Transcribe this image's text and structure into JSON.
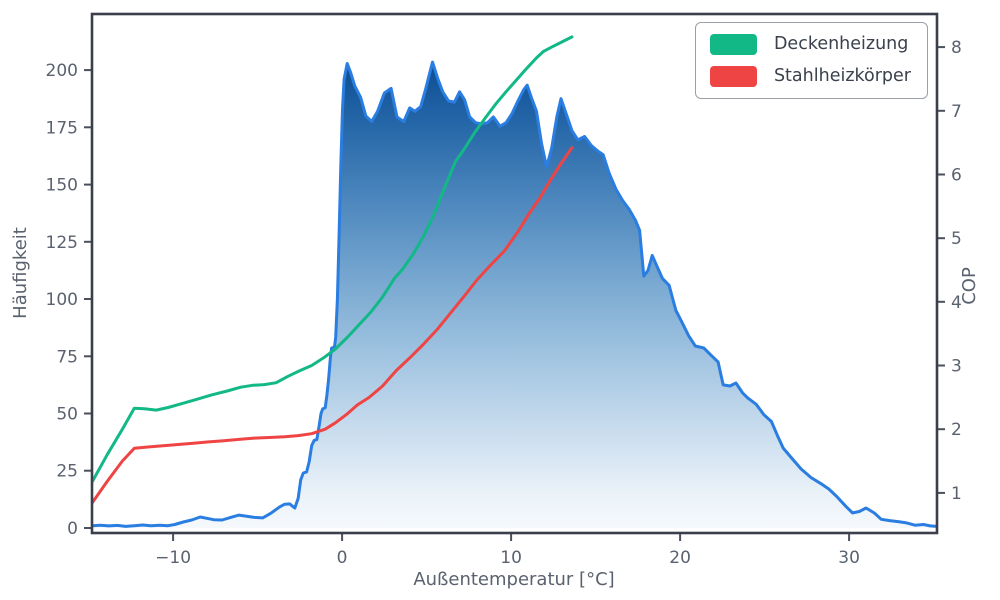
{
  "figure": {
    "background": "#ffffff"
  },
  "colors": {
    "spine": "#3a3f4b",
    "tick_mark": "#4a505c",
    "tick_label": "#5b626f",
    "axis_label": "#5b626f",
    "legend_border": "#9aa0a6",
    "legend_text": "#3b414c",
    "histogram_line": "#2a7de1",
    "area_gradient_stops": [
      [
        0.0,
        "#094489"
      ],
      [
        0.1,
        "#0e4f94"
      ],
      [
        0.2,
        "#2264a6"
      ],
      [
        0.35,
        "#4a85bc"
      ],
      [
        0.5,
        "#74a5cf"
      ],
      [
        0.65,
        "#9ec2e0"
      ],
      [
        0.8,
        "#c8dcee"
      ],
      [
        0.92,
        "#e9f1f8"
      ],
      [
        1.0,
        "#f7fafd"
      ]
    ],
    "deckenheizung": "#12b886",
    "stahlheizkoerper": "#ef4444"
  },
  "legend": {
    "position": "upper right",
    "items": [
      {
        "label": "Deckenheizung",
        "color": "#12b886"
      },
      {
        "label": "Stahlheizkörper",
        "color": "#ef4444"
      }
    ]
  },
  "chart_data": {
    "type": "area",
    "title": "",
    "xlabel": "Außentemperatur [°C]",
    "ylabel_left": "Häufigkeit",
    "ylabel_right": "COP",
    "xlim": [
      -14.8,
      35.2
    ],
    "ylim_left": [
      -2.2,
      224.5
    ],
    "ylim_right": [
      0.37,
      8.52
    ],
    "xticks": [
      -10,
      0,
      10,
      20,
      30
    ],
    "yticks_left": [
      0,
      25,
      50,
      75,
      100,
      125,
      150,
      175,
      200
    ],
    "yticks_right": [
      1,
      2,
      3,
      4,
      5,
      6,
      7,
      8
    ],
    "grid": false,
    "series": [
      {
        "name": "haeufigkeit-histogram",
        "type": "area",
        "axis": "left",
        "line_color": "#2a7de1",
        "fill": "vertical-gradient",
        "points": [
          [
            -14.8,
            1.0
          ],
          [
            -14.3,
            1.2
          ],
          [
            -13.8,
            0.9
          ],
          [
            -13.3,
            1.1
          ],
          [
            -12.8,
            0.7
          ],
          [
            -12.3,
            1.0
          ],
          [
            -11.8,
            1.3
          ],
          [
            -11.3,
            1.0
          ],
          [
            -10.8,
            1.2
          ],
          [
            -10.3,
            1.0
          ],
          [
            -9.9,
            1.5
          ],
          [
            -9.4,
            2.6
          ],
          [
            -8.9,
            3.5
          ],
          [
            -8.4,
            4.8
          ],
          [
            -8.0,
            4.2
          ],
          [
            -7.6,
            3.6
          ],
          [
            -7.1,
            3.5
          ],
          [
            -6.6,
            4.6
          ],
          [
            -6.1,
            5.6
          ],
          [
            -5.7,
            5.2
          ],
          [
            -5.2,
            4.6
          ],
          [
            -4.7,
            4.4
          ],
          [
            -4.2,
            6.5
          ],
          [
            -3.7,
            9.2
          ],
          [
            -3.4,
            10.4
          ],
          [
            -3.1,
            10.5
          ],
          [
            -2.8,
            8.7
          ],
          [
            -2.6,
            13
          ],
          [
            -2.45,
            21
          ],
          [
            -2.3,
            24
          ],
          [
            -2.1,
            24.5
          ],
          [
            -1.95,
            29
          ],
          [
            -1.8,
            36
          ],
          [
            -1.65,
            38.3
          ],
          [
            -1.5,
            38.6
          ],
          [
            -1.35,
            45
          ],
          [
            -1.25,
            50
          ],
          [
            -1.15,
            52
          ],
          [
            -1.0,
            52.5
          ],
          [
            -0.9,
            58
          ],
          [
            -0.8,
            65
          ],
          [
            -0.7,
            74
          ],
          [
            -0.62,
            78.6
          ],
          [
            -0.45,
            79
          ],
          [
            -0.38,
            83.4
          ],
          [
            -0.28,
            100
          ],
          [
            -0.18,
            128
          ],
          [
            -0.08,
            158
          ],
          [
            0.02,
            183
          ],
          [
            0.12,
            196
          ],
          [
            0.3,
            202.9
          ],
          [
            0.5,
            199
          ],
          [
            0.75,
            193
          ],
          [
            1.1,
            188
          ],
          [
            1.4,
            180
          ],
          [
            1.75,
            177.5
          ],
          [
            2.1,
            182
          ],
          [
            2.5,
            190
          ],
          [
            2.9,
            192
          ],
          [
            3.25,
            179.5
          ],
          [
            3.65,
            177.5
          ],
          [
            4.0,
            183.5
          ],
          [
            4.3,
            182
          ],
          [
            4.65,
            184
          ],
          [
            4.95,
            192
          ],
          [
            5.35,
            203.5
          ],
          [
            5.65,
            196.5
          ],
          [
            5.95,
            190.5
          ],
          [
            6.3,
            186.5
          ],
          [
            6.65,
            186
          ],
          [
            6.95,
            190.5
          ],
          [
            7.25,
            187
          ],
          [
            7.55,
            179.5
          ],
          [
            7.9,
            177
          ],
          [
            8.25,
            176.5
          ],
          [
            8.6,
            177
          ],
          [
            8.95,
            179.5
          ],
          [
            9.35,
            175.5
          ],
          [
            9.7,
            177
          ],
          [
            10.05,
            181
          ],
          [
            10.4,
            186.5
          ],
          [
            10.75,
            191.5
          ],
          [
            10.95,
            193.4
          ],
          [
            11.2,
            188
          ],
          [
            11.5,
            182
          ],
          [
            11.8,
            168
          ],
          [
            12.1,
            157.6
          ],
          [
            12.4,
            166
          ],
          [
            12.7,
            179.5
          ],
          [
            12.95,
            187.5
          ],
          [
            13.3,
            180
          ],
          [
            13.6,
            173.5
          ],
          [
            13.95,
            169.5
          ],
          [
            14.35,
            171
          ],
          [
            14.75,
            167
          ],
          [
            15.15,
            164.5
          ],
          [
            15.45,
            163
          ],
          [
            15.8,
            155
          ],
          [
            16.2,
            148
          ],
          [
            16.6,
            143
          ],
          [
            17.0,
            139
          ],
          [
            17.35,
            134.5
          ],
          [
            17.6,
            130
          ],
          [
            17.85,
            110
          ],
          [
            18.1,
            112.5
          ],
          [
            18.35,
            119
          ],
          [
            18.65,
            114
          ],
          [
            18.95,
            109
          ],
          [
            19.35,
            106
          ],
          [
            19.75,
            95
          ],
          [
            20.1,
            90
          ],
          [
            20.5,
            84
          ],
          [
            20.9,
            79.5
          ],
          [
            21.4,
            78.6
          ],
          [
            21.9,
            75
          ],
          [
            22.25,
            72.5
          ],
          [
            22.55,
            62.5
          ],
          [
            22.95,
            62
          ],
          [
            23.3,
            63.3
          ],
          [
            23.7,
            59
          ],
          [
            24.0,
            56.8
          ],
          [
            24.5,
            54
          ],
          [
            24.95,
            49.5
          ],
          [
            25.4,
            46.5
          ],
          [
            25.75,
            40.5
          ],
          [
            26.1,
            34.9
          ],
          [
            26.6,
            30.5
          ],
          [
            27.15,
            25.8
          ],
          [
            27.75,
            22
          ],
          [
            28.3,
            19.5
          ],
          [
            28.8,
            17
          ],
          [
            29.3,
            13.5
          ],
          [
            29.8,
            9.5
          ],
          [
            30.2,
            6.6
          ],
          [
            30.6,
            7.2
          ],
          [
            31.0,
            8.7
          ],
          [
            31.5,
            6.5
          ],
          [
            31.9,
            3.8
          ],
          [
            32.4,
            3.2
          ],
          [
            32.9,
            2.8
          ],
          [
            33.4,
            2.2
          ],
          [
            33.9,
            1.2
          ],
          [
            34.4,
            1.5
          ],
          [
            34.8,
            0.9
          ],
          [
            35.2,
            0.7
          ]
        ]
      },
      {
        "name": "Deckenheizung",
        "type": "line",
        "axis": "right",
        "color": "#12b886",
        "points": [
          [
            -14.8,
            1.17
          ],
          [
            -13.9,
            1.6
          ],
          [
            -13.0,
            2.0
          ],
          [
            -12.3,
            2.33
          ],
          [
            -11.7,
            2.32
          ],
          [
            -11.0,
            2.3
          ],
          [
            -10.3,
            2.34
          ],
          [
            -9.5,
            2.4
          ],
          [
            -8.6,
            2.47
          ],
          [
            -7.7,
            2.54
          ],
          [
            -6.8,
            2.6
          ],
          [
            -6.0,
            2.66
          ],
          [
            -5.3,
            2.69
          ],
          [
            -4.6,
            2.7
          ],
          [
            -3.9,
            2.73
          ],
          [
            -3.2,
            2.83
          ],
          [
            -2.5,
            2.92
          ],
          [
            -1.8,
            3.0
          ],
          [
            -1.1,
            3.12
          ],
          [
            -0.4,
            3.26
          ],
          [
            0.3,
            3.44
          ],
          [
            1.0,
            3.64
          ],
          [
            1.7,
            3.84
          ],
          [
            2.4,
            4.08
          ],
          [
            3.1,
            4.37
          ],
          [
            3.6,
            4.52
          ],
          [
            4.2,
            4.75
          ],
          [
            4.8,
            5.02
          ],
          [
            5.4,
            5.35
          ],
          [
            6.0,
            5.75
          ],
          [
            6.7,
            6.2
          ],
          [
            7.3,
            6.43
          ],
          [
            7.9,
            6.68
          ],
          [
            8.5,
            6.9
          ],
          [
            9.1,
            7.11
          ],
          [
            9.7,
            7.3
          ],
          [
            10.3,
            7.48
          ],
          [
            10.9,
            7.66
          ],
          [
            11.5,
            7.83
          ],
          [
            11.9,
            7.93
          ],
          [
            12.4,
            8.0
          ],
          [
            13.0,
            8.08
          ],
          [
            13.6,
            8.16
          ]
        ]
      },
      {
        "name": "Stahlheizkörper",
        "type": "line",
        "axis": "right",
        "color": "#ef4444",
        "points": [
          [
            -14.8,
            0.84
          ],
          [
            -13.9,
            1.18
          ],
          [
            -13.0,
            1.5
          ],
          [
            -12.3,
            1.7
          ],
          [
            -11.5,
            1.72
          ],
          [
            -10.6,
            1.74
          ],
          [
            -9.7,
            1.76
          ],
          [
            -8.8,
            1.78
          ],
          [
            -7.9,
            1.8
          ],
          [
            -7.0,
            1.82
          ],
          [
            -6.1,
            1.84
          ],
          [
            -5.2,
            1.86
          ],
          [
            -4.3,
            1.87
          ],
          [
            -3.4,
            1.88
          ],
          [
            -2.6,
            1.9
          ],
          [
            -1.8,
            1.93
          ],
          [
            -1.0,
            2.0
          ],
          [
            -0.4,
            2.1
          ],
          [
            0.3,
            2.24
          ],
          [
            0.9,
            2.38
          ],
          [
            1.6,
            2.5
          ],
          [
            2.4,
            2.68
          ],
          [
            3.2,
            2.92
          ],
          [
            4.0,
            3.12
          ],
          [
            4.8,
            3.33
          ],
          [
            5.6,
            3.56
          ],
          [
            6.4,
            3.82
          ],
          [
            7.2,
            4.08
          ],
          [
            8.0,
            4.35
          ],
          [
            8.8,
            4.58
          ],
          [
            9.6,
            4.8
          ],
          [
            10.4,
            5.1
          ],
          [
            11.1,
            5.4
          ],
          [
            11.7,
            5.63
          ],
          [
            12.3,
            5.9
          ],
          [
            12.9,
            6.15
          ],
          [
            13.6,
            6.42
          ]
        ]
      }
    ]
  }
}
